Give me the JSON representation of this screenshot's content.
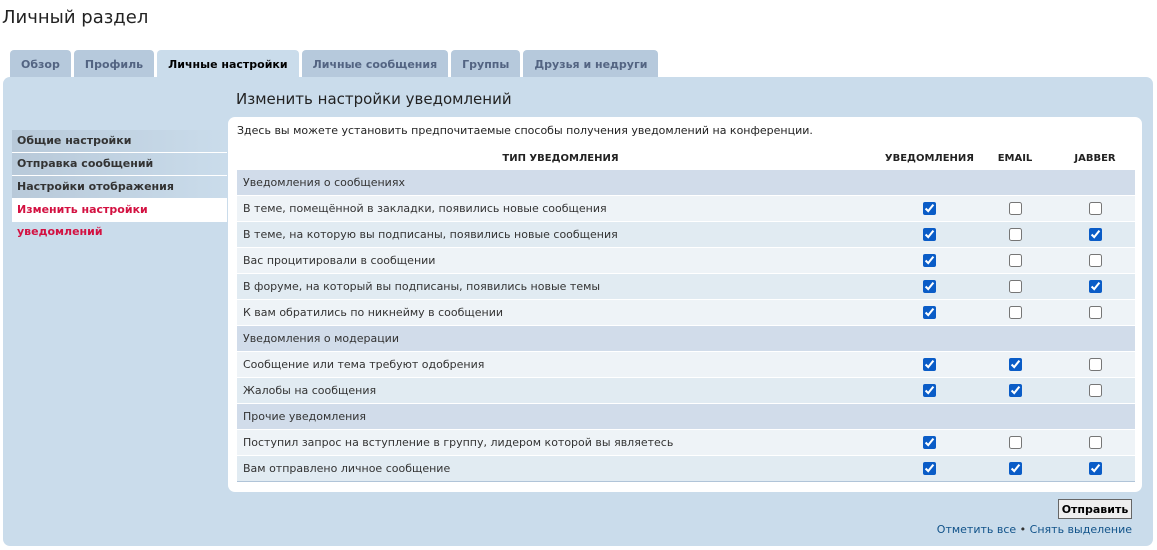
{
  "page_title": "Личный раздел",
  "tabs": [
    "Обзор",
    "Профиль",
    "Личные настройки",
    "Личные сообщения",
    "Группы",
    "Друзья и недруги"
  ],
  "active_tab": 2,
  "menu": [
    "Общие настройки",
    "Отправка сообщений",
    "Настройки отображения",
    "Изменить настройки уведомлений"
  ],
  "active_menu": 3,
  "panel_title": "Изменить настройки уведомлений",
  "intro": "Здесь вы можете установить предпочитаемые способы получения уведомлений на конференции.",
  "table": {
    "headers": [
      "ТИП УВЕДОМЛЕНИЯ",
      "УВЕДОМЛЕНИЯ",
      "EMAIL",
      "JABBER"
    ],
    "groups": [
      {
        "title": "Уведомления о сообщениях",
        "rows": [
          {
            "label": "В теме, помещённой в закладки, появились новые сообщения",
            "checks": [
              true,
              false,
              false
            ]
          },
          {
            "label": "В теме, на которую вы подписаны, появились новые сообщения",
            "checks": [
              true,
              false,
              true
            ]
          },
          {
            "label": "Вас процитировали в сообщении",
            "checks": [
              true,
              false,
              false
            ]
          },
          {
            "label": "В форуме, на который вы подписаны, появились новые темы",
            "checks": [
              true,
              false,
              true
            ]
          },
          {
            "label": "К вам обратились по никнейму в сообщении",
            "checks": [
              true,
              false,
              false
            ]
          }
        ]
      },
      {
        "title": "Уведомления о модерации",
        "rows": [
          {
            "label": "Сообщение или тема требуют одобрения",
            "checks": [
              true,
              true,
              false
            ]
          },
          {
            "label": "Жалобы на сообщения",
            "checks": [
              true,
              true,
              false
            ]
          }
        ]
      },
      {
        "title": "Прочие уведомления",
        "rows": [
          {
            "label": "Поступил запрос на вступление в группу, лидером которой вы являетесь",
            "checks": [
              true,
              false,
              false
            ]
          },
          {
            "label": "Вам отправлено личное сообщение",
            "checks": [
              true,
              true,
              true
            ]
          }
        ]
      }
    ]
  },
  "submit": "Отправить",
  "links": [
    "Отметить все",
    "Снять выделение"
  ],
  "separator": "•"
}
